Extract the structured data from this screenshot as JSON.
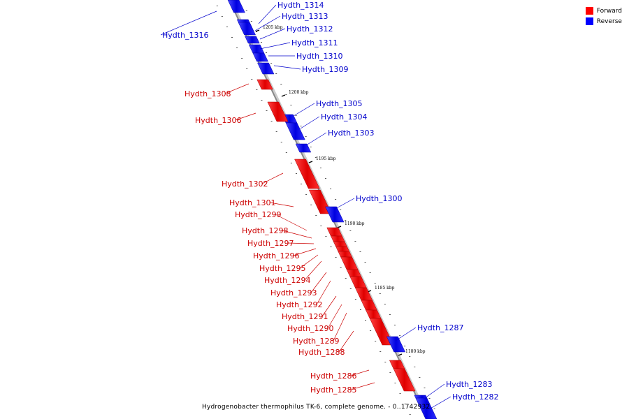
{
  "colors": {
    "forward": "#ff0000",
    "reverse": "#0000ff",
    "axis": "#999999",
    "label_forward": "#cc0000",
    "label_reverse": "#0000cc"
  },
  "legend": {
    "forward_label": "Forward",
    "reverse_label": "Reverse"
  },
  "caption": "Hydrogenobacter thermophilus TK-6, complete genome. - 0..1742932",
  "scale_ticks": [
    "1205 kbp",
    "1200 kbp",
    "1195 kbp",
    "1190 kbp",
    "1185 kbp",
    "1180 kbp"
  ],
  "genes": [
    {
      "name": "Hydth_1314",
      "strand": "reverse"
    },
    {
      "name": "Hydth_1313",
      "strand": "reverse"
    },
    {
      "name": "Hydth_1316",
      "strand": "reverse"
    },
    {
      "name": "Hydth_1312",
      "strand": "reverse"
    },
    {
      "name": "Hydth_1311",
      "strand": "reverse"
    },
    {
      "name": "Hydth_1310",
      "strand": "reverse"
    },
    {
      "name": "Hydth_1309",
      "strand": "reverse"
    },
    {
      "name": "Hydth_1308",
      "strand": "forward"
    },
    {
      "name": "Hydth_1305",
      "strand": "reverse"
    },
    {
      "name": "Hydth_1306",
      "strand": "forward"
    },
    {
      "name": "Hydth_1304",
      "strand": "reverse"
    },
    {
      "name": "Hydth_1303",
      "strand": "reverse"
    },
    {
      "name": "Hydth_1302",
      "strand": "forward"
    },
    {
      "name": "Hydth_1301",
      "strand": "forward"
    },
    {
      "name": "Hydth_1300",
      "strand": "reverse"
    },
    {
      "name": "Hydth_1299",
      "strand": "forward"
    },
    {
      "name": "Hydth_1298",
      "strand": "forward"
    },
    {
      "name": "Hydth_1297",
      "strand": "forward"
    },
    {
      "name": "Hydth_1296",
      "strand": "forward"
    },
    {
      "name": "Hydth_1295",
      "strand": "forward"
    },
    {
      "name": "Hydth_1294",
      "strand": "forward"
    },
    {
      "name": "Hydth_1293",
      "strand": "forward"
    },
    {
      "name": "Hydth_1292",
      "strand": "forward"
    },
    {
      "name": "Hydth_1291",
      "strand": "forward"
    },
    {
      "name": "Hydth_1290",
      "strand": "forward"
    },
    {
      "name": "Hydth_1289",
      "strand": "forward"
    },
    {
      "name": "Hydth_1288",
      "strand": "forward"
    },
    {
      "name": "Hydth_1287",
      "strand": "reverse"
    },
    {
      "name": "Hydth_1286",
      "strand": "forward"
    },
    {
      "name": "Hydth_1285",
      "strand": "forward"
    },
    {
      "name": "Hydth_1283",
      "strand": "reverse"
    },
    {
      "name": "Hydth_1282",
      "strand": "reverse"
    }
  ]
}
